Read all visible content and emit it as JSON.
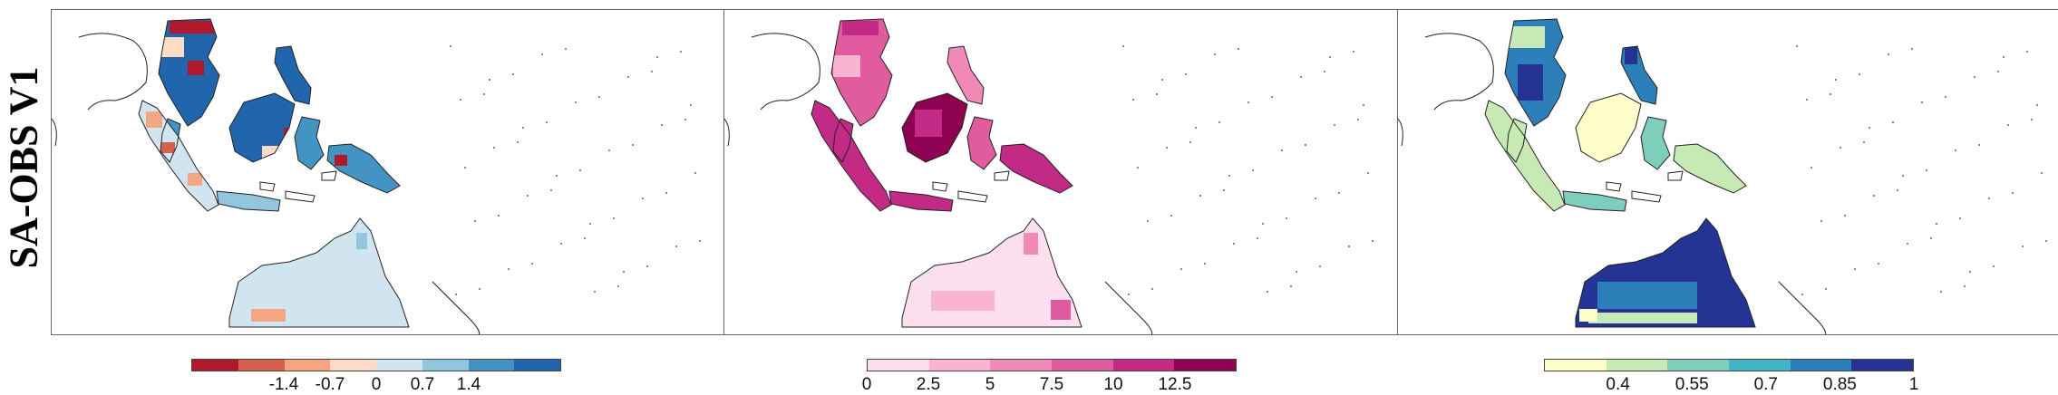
{
  "row_label": "SA-OBS V1",
  "panels": [
    {
      "colorbar": {
        "colors": [
          "#b2182b",
          "#d6604d",
          "#f4a582",
          "#fddbc7",
          "#d1e5f0",
          "#92c5de",
          "#4393c3",
          "#2166ac"
        ],
        "ticks": [
          "-1.4",
          "-0.7",
          "0",
          "0.7",
          "1.4"
        ],
        "tick_positions": [
          0.25,
          0.375,
          0.5,
          0.625,
          0.75
        ]
      }
    },
    {
      "colorbar": {
        "colors": [
          "#fde0ef",
          "#f9b4d0",
          "#f28ab8",
          "#e05c9f",
          "#c22a86",
          "#8e0152"
        ],
        "ticks": [
          "0",
          "2.5",
          "5",
          "7.5",
          "10",
          "12.5"
        ],
        "tick_positions": [
          0.0,
          0.1667,
          0.3333,
          0.5,
          0.6667,
          0.8333
        ]
      }
    },
    {
      "colorbar": {
        "colors": [
          "#ffffcc",
          "#c7e9b4",
          "#7fcdbb",
          "#41b6c4",
          "#2c7fb8",
          "#253494"
        ],
        "ticks": [
          "0.4",
          "0.55",
          "0.7",
          "0.85",
          "1"
        ],
        "tick_positions": [
          0.2,
          0.4,
          0.6,
          0.8,
          1.0
        ]
      }
    }
  ]
}
